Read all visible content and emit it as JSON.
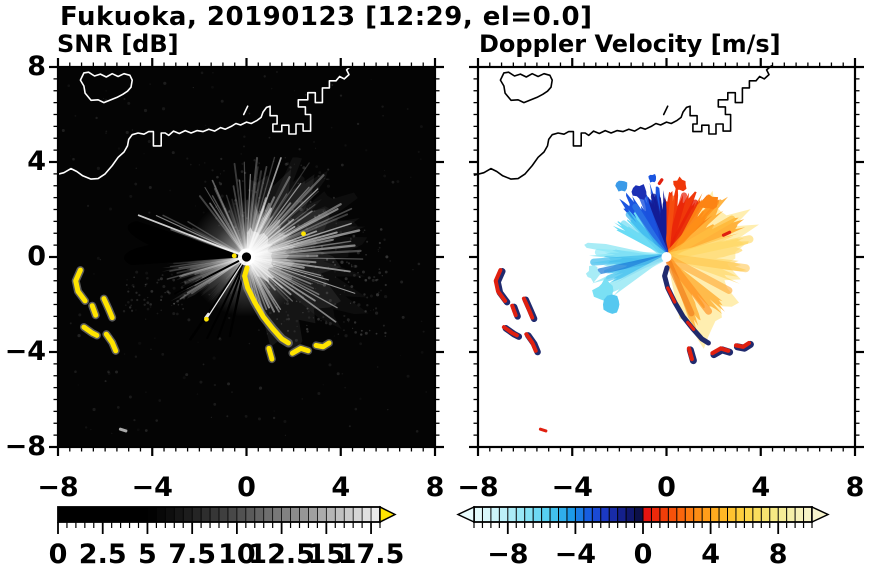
{
  "title": "Fukuoka, 20190123 [12:29, el=0.0]",
  "panels": {
    "left": {
      "subtitle": "SNR [dB]"
    },
    "right": {
      "subtitle": "Doppler Velocity [m/s]"
    }
  },
  "axis": {
    "range": [
      -8,
      8
    ],
    "major": [
      -8,
      -4,
      0,
      4,
      8
    ],
    "minor_step": 0.5,
    "x_tick_labels": [
      "−8",
      "−4",
      "0",
      "4",
      "8"
    ],
    "y_tick_labels": [
      "8",
      "4",
      "0",
      "−4",
      "−8"
    ]
  },
  "colorbars": {
    "snr": {
      "range": [
        0,
        18
      ],
      "segment": 0.5,
      "black_until": 5,
      "tick_values": [
        0,
        2.5,
        5,
        7.5,
        10,
        12.5,
        15,
        17.5
      ],
      "tick_labels": [
        "0",
        "2.5",
        "5",
        "7.5",
        "10",
        "12.5",
        "15",
        "17.5"
      ],
      "overflow_color": "#ffe400"
    },
    "vel": {
      "range": [
        -10,
        10
      ],
      "segment": 0.5,
      "tick_values": [
        -8,
        -4,
        0,
        4,
        8
      ],
      "tick_labels": [
        "−8",
        "−4",
        "0",
        "4",
        "8"
      ],
      "neg_stops": [
        [
          -10,
          "#e8fbfc"
        ],
        [
          -8.5,
          "#c6f2f8"
        ],
        [
          -7,
          "#8fe6f5"
        ],
        [
          -5.5,
          "#4cccf0"
        ],
        [
          -4.25,
          "#1c9ae8"
        ],
        [
          -3.25,
          "#175ee0"
        ],
        [
          -2.5,
          "#1c40d0"
        ],
        [
          -1.75,
          "#182ca8"
        ],
        [
          -1,
          "#121a7e"
        ],
        [
          -0.25,
          "#0c1048"
        ]
      ],
      "pos_stops": [
        [
          0.25,
          "#e41410"
        ],
        [
          1,
          "#ee3408"
        ],
        [
          2,
          "#f85c0a"
        ],
        [
          3,
          "#fe8512"
        ],
        [
          4,
          "#ffa51c"
        ],
        [
          5,
          "#ffbe28"
        ],
        [
          6,
          "#fed343"
        ],
        [
          7,
          "#f8e266"
        ],
        [
          8,
          "#f5ea8e"
        ],
        [
          9,
          "#f5f0b2"
        ],
        [
          10,
          "#f7f4cc"
        ]
      ]
    }
  },
  "chart_data": [
    {
      "type": "heatmap",
      "title": "SNR [dB]",
      "x_range": [
        -8,
        8
      ],
      "y_range": [
        -8,
        8
      ],
      "x_ticks": [
        -8,
        -4,
        0,
        4,
        8
      ],
      "y_ticks": [
        -8,
        -4,
        0,
        4,
        8
      ],
      "colorbar_range": [
        0,
        18
      ],
      "colorbar_ticks": [
        0,
        2.5,
        5,
        7.5,
        10,
        12.5,
        15,
        17.5
      ],
      "radar_center": [
        0,
        0
      ],
      "description": "Grayscale SNR field on black: bright radial starburst centered on the radar at the origin, strongest toward N-NE-E out to ~5 km; fainter fan toward WSW; thin bright ray toward WNW; yellow overflow (>18 dB) clutter arc running SSE from the radar to (1.8,-3.6), yellow blobs near (1,-4)-(3.5,-3.7), and yellow patches around (-7,-1) to (-5.5,-4); white coastline along the top."
    },
    {
      "type": "heatmap",
      "title": "Doppler Velocity [m/s]",
      "x_range": [
        -8,
        8
      ],
      "y_range": [
        -8,
        8
      ],
      "x_ticks": [
        -8,
        -4,
        0,
        4,
        8
      ],
      "y_ticks": [
        -8,
        -4,
        0,
        4,
        8
      ],
      "colorbar_range": [
        -10,
        10
      ],
      "colorbar_ticks": [
        -8,
        -4,
        0,
        4,
        8
      ],
      "radar_center": [
        0,
        0
      ],
      "description": "Diverging Doppler velocity fan around the radar: negative (cyan-blue, toward radar) wedges to the west and north-northwest with dark navy next to the zero line; positive (red-orange-yellow, away) from north-northeast clockwise through southeast out to ~4 km; navy/red aliased clutter along the SSE arc, blobs near (1,-4)-(3.5,-3.7) and patches around (-7,-1) to (-5.5,-4); black coastline along the top."
    }
  ],
  "map_overlay": {
    "coast_main": [
      [
        -8.15,
        3.45
      ],
      [
        -7.75,
        3.55
      ],
      [
        -7.45,
        3.72
      ],
      [
        -7.2,
        3.6
      ],
      [
        -6.95,
        3.42
      ],
      [
        -6.6,
        3.28
      ],
      [
        -6.3,
        3.3
      ],
      [
        -6.0,
        3.5
      ],
      [
        -5.7,
        3.85
      ],
      [
        -5.45,
        4.2
      ],
      [
        -5.2,
        4.42
      ],
      [
        -5.05,
        4.68
      ],
      [
        -5.0,
        4.95
      ],
      [
        -4.85,
        5.15
      ],
      [
        -4.6,
        5.22
      ],
      [
        -4.35,
        5.17
      ],
      [
        -4.15,
        5.28
      ],
      [
        -3.95,
        5.28
      ],
      [
        -3.95,
        4.68
      ],
      [
        -3.62,
        4.68
      ],
      [
        -3.62,
        5.22
      ],
      [
        -3.45,
        5.22
      ],
      [
        -3.3,
        5.12
      ],
      [
        -3.1,
        5.3
      ],
      [
        -2.85,
        5.2
      ],
      [
        -2.6,
        5.32
      ],
      [
        -2.35,
        5.22
      ],
      [
        -2.1,
        5.32
      ],
      [
        -1.85,
        5.28
      ],
      [
        -1.6,
        5.38
      ],
      [
        -1.35,
        5.3
      ],
      [
        -1.1,
        5.45
      ],
      [
        -0.9,
        5.38
      ],
      [
        -0.65,
        5.5
      ],
      [
        -0.45,
        5.62
      ],
      [
        -0.25,
        5.56
      ],
      [
        0.0,
        5.68
      ],
      [
        0.2,
        5.62
      ],
      [
        0.45,
        5.75
      ],
      [
        0.62,
        5.88
      ],
      [
        0.7,
        6.1
      ],
      [
        0.85,
        6.3
      ],
      [
        1.0,
        6.35
      ],
      [
        1.0,
        5.95
      ],
      [
        1.3,
        5.95
      ],
      [
        1.3,
        5.6
      ],
      [
        1.12,
        5.6
      ],
      [
        1.12,
        5.28
      ],
      [
        1.5,
        5.28
      ],
      [
        1.5,
        5.55
      ],
      [
        1.8,
        5.55
      ],
      [
        1.8,
        5.18
      ],
      [
        2.1,
        5.18
      ],
      [
        2.1,
        5.6
      ],
      [
        2.4,
        5.6
      ],
      [
        2.4,
        5.3
      ],
      [
        2.72,
        5.3
      ],
      [
        2.72,
        6.0
      ],
      [
        2.5,
        6.0
      ],
      [
        2.5,
        6.32
      ],
      [
        2.2,
        6.32
      ],
      [
        2.2,
        6.62
      ],
      [
        2.6,
        6.62
      ],
      [
        2.6,
        6.92
      ],
      [
        2.92,
        6.92
      ],
      [
        2.92,
        6.5
      ],
      [
        3.22,
        6.5
      ],
      [
        3.22,
        7.12
      ],
      [
        3.52,
        7.12
      ],
      [
        3.52,
        7.42
      ],
      [
        3.8,
        7.42
      ],
      [
        3.95,
        7.6
      ],
      [
        4.15,
        7.5
      ],
      [
        4.35,
        7.68
      ],
      [
        4.25,
        7.88
      ],
      [
        4.45,
        8.05
      ]
    ],
    "island": [
      [
        -6.9,
        7.75
      ],
      [
        -7.05,
        7.45
      ],
      [
        -6.9,
        7.2
      ],
      [
        -6.85,
        6.9
      ],
      [
        -6.6,
        6.6
      ],
      [
        -6.3,
        6.62
      ],
      [
        -6.05,
        6.5
      ],
      [
        -5.75,
        6.62
      ],
      [
        -5.5,
        6.72
      ],
      [
        -5.25,
        6.85
      ],
      [
        -5.05,
        6.98
      ],
      [
        -4.9,
        7.15
      ],
      [
        -4.85,
        7.45
      ],
      [
        -4.95,
        7.65
      ],
      [
        -5.2,
        7.72
      ],
      [
        -5.45,
        7.6
      ],
      [
        -5.7,
        7.72
      ],
      [
        -5.95,
        7.58
      ],
      [
        -6.2,
        7.7
      ],
      [
        -6.45,
        7.62
      ],
      [
        -6.7,
        7.78
      ]
    ],
    "islet": [
      [
        -0.12,
        6.0
      ],
      [
        0.05,
        6.35
      ]
    ]
  },
  "features": {
    "arc_sse": [
      [
        0.02,
        -0.45
      ],
      [
        -0.08,
        -0.8
      ],
      [
        0.05,
        -1.3
      ],
      [
        0.35,
        -1.9
      ],
      [
        0.7,
        -2.5
      ],
      [
        1.1,
        -3.0
      ],
      [
        1.5,
        -3.45
      ],
      [
        1.78,
        -3.62
      ]
    ],
    "chain_se": [
      [
        [
          0.95,
          -3.85
        ],
        [
          1.08,
          -4.3
        ]
      ],
      [
        [
          1.95,
          -4.05
        ],
        [
          2.3,
          -3.85
        ],
        [
          2.62,
          -3.95
        ]
      ],
      [
        [
          2.95,
          -3.72
        ],
        [
          3.25,
          -3.78
        ],
        [
          3.5,
          -3.62
        ]
      ]
    ],
    "clutter": [
      [
        [
          -7.05,
          -0.55
        ],
        [
          -7.25,
          -1.0
        ],
        [
          -7.15,
          -1.45
        ],
        [
          -6.85,
          -1.85
        ]
      ],
      [
        [
          -6.55,
          -2.05
        ],
        [
          -6.4,
          -2.45
        ]
      ],
      [
        [
          -6.05,
          -1.75
        ],
        [
          -5.85,
          -2.2
        ],
        [
          -5.7,
          -2.55
        ]
      ],
      [
        [
          -6.9,
          -2.95
        ],
        [
          -6.55,
          -3.2
        ],
        [
          -6.35,
          -3.3
        ]
      ],
      [
        [
          -5.95,
          -3.25
        ],
        [
          -5.7,
          -3.6
        ],
        [
          -5.55,
          -3.95
        ]
      ]
    ],
    "tiny": [
      [
        -5.35,
        -7.25
      ],
      [
        -5.12,
        -7.32
      ]
    ],
    "yellow_specks": [
      [
        -0.52,
        0.05
      ],
      [
        2.42,
        0.98
      ],
      [
        -1.7,
        -2.62
      ]
    ],
    "colors": {
      "yellow": "#ffe400",
      "red": "#e02010",
      "navy": "#141f66",
      "gray_halo": "#c8c8c8"
    }
  },
  "snr_render": {
    "sectors": [
      [
        -40,
        88,
        54,
        2.2,
        5.0,
        0.15,
        0.62,
        1,
        2.4
      ],
      [
        88,
        130,
        14,
        2.0,
        4.0,
        0.1,
        0.42,
        1,
        2
      ],
      [
        -80,
        -40,
        16,
        1.2,
        2.9,
        0.12,
        0.5,
        1,
        2
      ],
      [
        148,
        166,
        8,
        2.2,
        4.4,
        0.1,
        0.35,
        1,
        1.8
      ],
      [
        185,
        216,
        20,
        1.6,
        3.6,
        0.1,
        0.35,
        1,
        2
      ],
      [
        -135,
        -95,
        6,
        0.8,
        2.2,
        0.05,
        0.15,
        1,
        1.5
      ]
    ],
    "haze": [
      [
        -75,
        88,
        4.4,
        0.07
      ],
      [
        5,
        65,
        5.0,
        0.05
      ],
      [
        185,
        216,
        3.4,
        0.1
      ],
      [
        216,
        232,
        2.4,
        0.06
      ],
      [
        -40,
        40,
        5.4,
        0.04
      ]
    ],
    "core": [
      [
        -60,
        88,
        1.35,
        0.5
      ],
      [
        25,
        80,
        2.3,
        0.28
      ],
      [
        -30,
        30,
        2.1,
        0.2
      ]
    ],
    "bright_rays": [
      [
        159,
        4.9,
        1.8,
        0.8
      ],
      [
        155.5,
        4.2,
        1.2,
        0.5
      ],
      [
        237,
        3.2,
        1.2,
        0.9
      ]
    ],
    "dark_wedges": [
      [
        162,
        184,
        5.2
      ]
    ],
    "dark_rays": [
      [
        235.5,
        4.2,
        2.6
      ],
      [
        244,
        3.8,
        2.0
      ],
      [
        250.5,
        3.6,
        2.2
      ],
      [
        258,
        3.4,
        2.4
      ],
      [
        207,
        3.4,
        2.0
      ]
    ],
    "speckle": [
      [
        -7.8,
        7.8,
        -7.8,
        7.8,
        220,
        0.03,
        0.12
      ],
      [
        1.0,
        6.0,
        -3.4,
        1.2,
        160,
        0.06,
        0.2
      ],
      [
        -1.5,
        4.0,
        1.0,
        4.2,
        80,
        0.05,
        0.15
      ],
      [
        -5.2,
        -2.6,
        -2.4,
        -0.6,
        60,
        0.05,
        0.16
      ]
    ],
    "white_dash": [
      [
        -1.62,
        -2.4
      ],
      [
        -1.74,
        -2.56
      ]
    ]
  },
  "vel_render": {
    "wedges": [
      [
        -78,
        55,
        3.9,
        "#ffeeb0",
        1
      ],
      [
        18,
        52,
        3.4,
        "#ffab2e",
        0.9
      ],
      [
        -20,
        20,
        3.3,
        "#ffd96e",
        0.7
      ],
      [
        -70,
        -38,
        3.1,
        "#ffb23a",
        0.85
      ],
      [
        55,
        92,
        3.0,
        "#f0380a",
        1
      ],
      [
        42,
        62,
        3.1,
        "#fc8414",
        0.95
      ],
      [
        96,
        132,
        3.0,
        "#1b55e0",
        1
      ],
      [
        90,
        108,
        2.7,
        "#131c96",
        1
      ],
      [
        125,
        152,
        2.5,
        "#6adcf5",
        1
      ],
      [
        168,
        216,
        3.3,
        "#a8ecf6",
        1
      ],
      [
        172,
        207,
        2.6,
        "#55c8f0",
        0.9
      ]
    ],
    "streaks": [
      [
        62,
        2.6,
        6,
        "#e82008",
        0.8
      ],
      [
        74,
        2.7,
        6,
        "#e82008",
        0.7
      ],
      [
        84,
        2.5,
        5,
        "#f85510",
        0.7
      ],
      [
        48,
        3.1,
        7,
        "#ff9018",
        0.8
      ],
      [
        30,
        3.2,
        7,
        "#ffc040",
        0.7
      ],
      [
        12,
        3.6,
        8,
        "#ffd860",
        0.6
      ],
      [
        -8,
        3.4,
        8,
        "#ffc448",
        0.55
      ],
      [
        -28,
        3.0,
        7,
        "#ffa830",
        0.6
      ],
      [
        -52,
        2.9,
        7,
        "#ff9020",
        0.65
      ],
      [
        -66,
        2.6,
        6,
        "#f07818",
        0.6
      ],
      [
        102,
        2.6,
        6,
        "#131c96",
        0.8
      ],
      [
        112,
        2.7,
        7,
        "#1b52de",
        0.8
      ],
      [
        122,
        2.5,
        6,
        "#2f7ce8",
        0.7
      ],
      [
        132,
        2.4,
        6,
        "#38b4ee",
        0.7
      ],
      [
        142,
        2.3,
        6,
        "#70dcf4",
        0.7
      ],
      [
        176,
        2.9,
        7,
        "#8feaf8",
        0.7
      ],
      [
        184,
        3.1,
        7,
        "#46c0ee",
        0.75
      ],
      [
        192,
        2.9,
        6,
        "#1878d8",
        0.7
      ],
      [
        200,
        2.6,
        6,
        "#55c8f0",
        0.7
      ],
      [
        208,
        2.3,
        5,
        "#a8ecf6",
        0.7
      ]
    ],
    "blobs": [
      [
        -2.6,
        -1.4,
        0.5,
        "#7ae0f4"
      ],
      [
        -3.1,
        -0.7,
        0.35,
        "#a8ecf6"
      ],
      [
        -2.3,
        -2.0,
        0.4,
        "#55c8f0"
      ],
      [
        -1.9,
        3.0,
        0.28,
        "#3a9ae8"
      ],
      [
        -1.15,
        2.75,
        0.35,
        "#1b2fb4"
      ],
      [
        0.55,
        3.05,
        0.3,
        "#f0380a"
      ],
      [
        1.8,
        2.3,
        0.4,
        "#fc8414"
      ],
      [
        -0.6,
        3.3,
        0.2,
        "#1b55e0"
      ]
    ],
    "red_dashes": [
      [
        [
          0.05,
          -1.3
        ],
        [
          0.35,
          -1.9
        ]
      ],
      [
        [
          0.9,
          -2.75
        ],
        [
          1.15,
          -3.05
        ]
      ],
      [
        [
          2.42,
          0.92
        ],
        [
          2.68,
          1.04
        ]
      ],
      [
        [
          -0.3,
          3.1
        ],
        [
          -0.2,
          3.25
        ]
      ]
    ]
  }
}
